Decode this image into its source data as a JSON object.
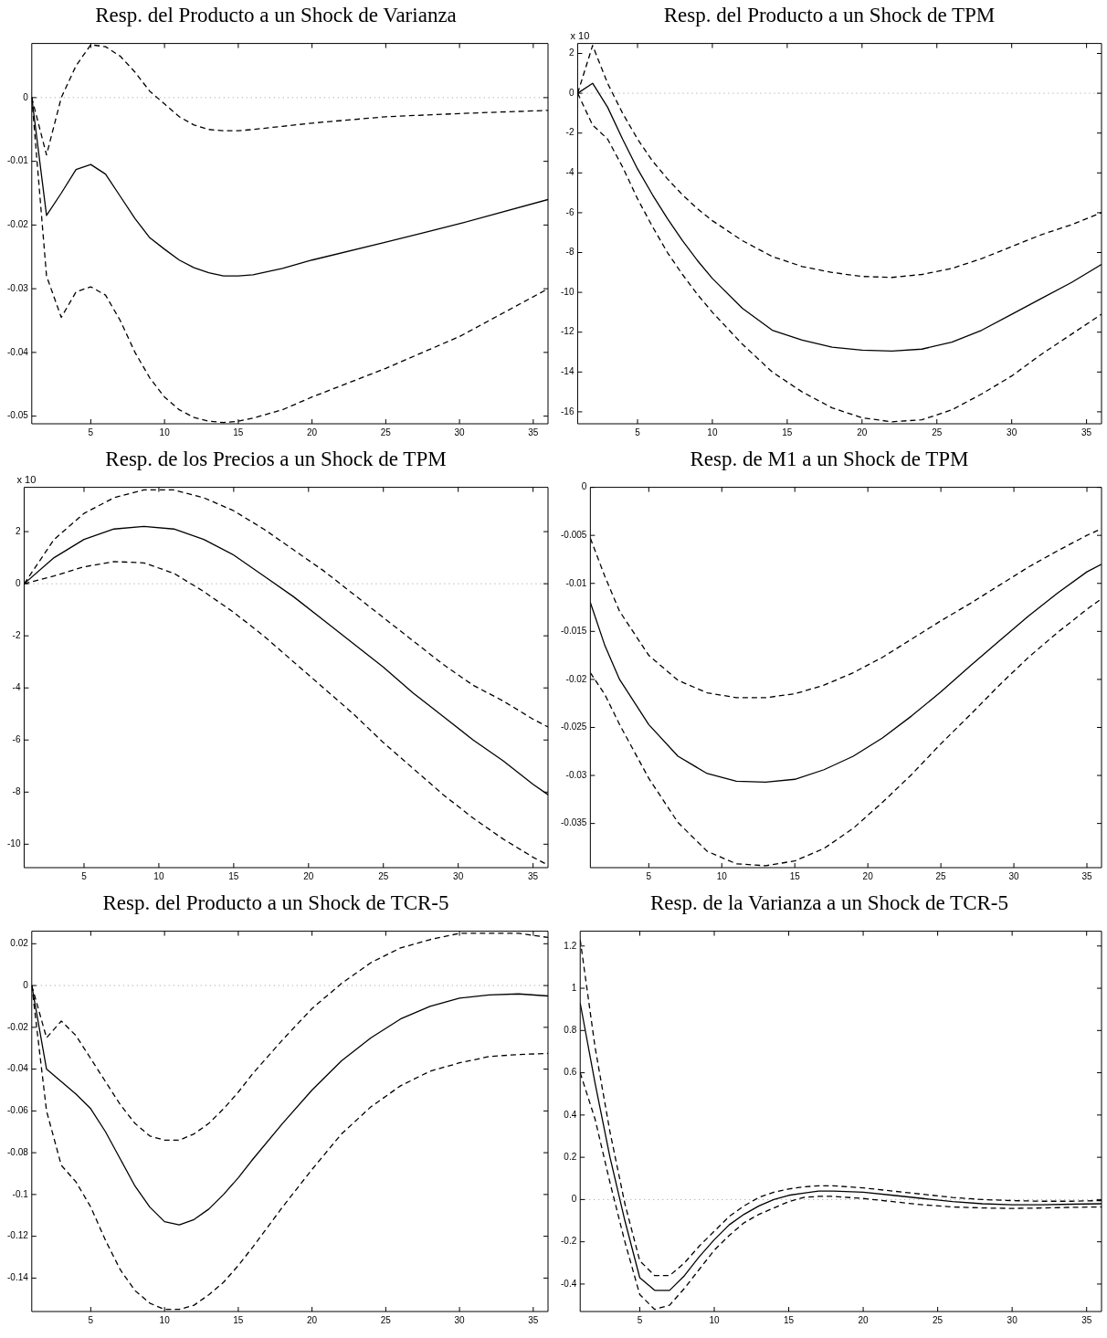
{
  "chart_data": [
    {
      "type": "line",
      "title": "Resp. del Producto a un Shock de Varianza",
      "x": [
        1,
        2,
        3,
        4,
        5,
        6,
        7,
        8,
        9,
        10,
        11,
        12,
        13,
        14,
        15,
        16,
        18,
        20,
        25,
        30,
        36
      ],
      "xlim": [
        1,
        36
      ],
      "xticks": [
        5,
        10,
        15,
        20,
        25,
        30,
        35
      ],
      "ylim": [
        -0.0512,
        0.0085
      ],
      "yticks": [
        -0.05,
        -0.04,
        -0.03,
        -0.02,
        -0.01,
        0
      ],
      "grid": false,
      "legend": false,
      "marker": "none",
      "ref_lines": [
        {
          "axis": "y",
          "value": 0,
          "line_style": "dotted",
          "color": "#999999"
        }
      ],
      "series": [
        {
          "color": "#000000",
          "line_style": "solid",
          "values": [
            0,
            -0.0185,
            -0.015,
            -0.0113,
            -0.0105,
            -0.012,
            -0.0155,
            -0.019,
            -0.022,
            -0.0238,
            -0.0255,
            -0.0267,
            -0.0275,
            -0.028,
            -0.028,
            -0.0278,
            -0.0268,
            -0.0255,
            -0.0227,
            -0.0198,
            -0.016
          ]
        },
        {
          "color": "#000000",
          "line_style": "dashed",
          "values": [
            0,
            -0.009,
            0,
            0.005,
            0.0083,
            0.008,
            0.0065,
            0.004,
            0.001,
            -0.001,
            -0.003,
            -0.0043,
            -0.005,
            -0.0052,
            -0.0052,
            -0.005,
            -0.0045,
            -0.004,
            -0.003,
            -0.0025,
            -0.002
          ]
        },
        {
          "color": "#000000",
          "line_style": "dashed",
          "values": [
            0,
            -0.028,
            -0.0345,
            -0.0305,
            -0.0297,
            -0.031,
            -0.035,
            -0.04,
            -0.044,
            -0.047,
            -0.049,
            -0.0502,
            -0.0508,
            -0.051,
            -0.0508,
            -0.0503,
            -0.049,
            -0.047,
            -0.0425,
            -0.0375,
            -0.03
          ]
        }
      ]
    },
    {
      "type": "line",
      "title": "Resp. del Producto a un Shock de TPM",
      "annotations": [
        "x 10"
      ],
      "x": [
        1,
        2,
        3,
        4,
        5,
        6,
        7,
        8,
        9,
        10,
        12,
        14,
        16,
        18,
        20,
        22,
        24,
        26,
        28,
        30,
        32,
        34,
        36
      ],
      "xlim": [
        1,
        36
      ],
      "xticks": [
        5,
        10,
        15,
        20,
        25,
        30,
        35
      ],
      "ylim": [
        -16.6,
        2.5
      ],
      "yticks": [
        -16,
        -14,
        -12,
        -10,
        -8,
        -6,
        -4,
        -2,
        0,
        2
      ],
      "grid": false,
      "legend": false,
      "marker": "none",
      "ref_lines": [
        {
          "axis": "y",
          "value": 0,
          "line_style": "dotted",
          "color": "#999999"
        }
      ],
      "series": [
        {
          "color": "#000000",
          "line_style": "solid",
          "values": [
            0,
            0.5,
            -0.7,
            -2.3,
            -3.8,
            -5.1,
            -6.3,
            -7.4,
            -8.4,
            -9.3,
            -10.8,
            -11.9,
            -12.4,
            -12.75,
            -12.9,
            -12.95,
            -12.85,
            -12.5,
            -11.9,
            -11.1,
            -10.3,
            -9.5,
            -8.6
          ]
        },
        {
          "color": "#000000",
          "line_style": "dashed",
          "values": [
            0,
            2.4,
            0.5,
            -1.0,
            -2.3,
            -3.4,
            -4.3,
            -5.1,
            -5.8,
            -6.4,
            -7.4,
            -8.2,
            -8.7,
            -9.0,
            -9.2,
            -9.25,
            -9.1,
            -8.8,
            -8.3,
            -7.7,
            -7.1,
            -6.6,
            -6.0
          ]
        },
        {
          "color": "#000000",
          "line_style": "dashed",
          "values": [
            0,
            -1.6,
            -2.3,
            -3.7,
            -5.3,
            -6.7,
            -8.0,
            -9.1,
            -10.1,
            -11.0,
            -12.6,
            -14.0,
            -15.0,
            -15.8,
            -16.3,
            -16.5,
            -16.4,
            -15.9,
            -15.1,
            -14.2,
            -13.1,
            -12.1,
            -11.1
          ]
        }
      ]
    },
    {
      "type": "line",
      "title": "Resp. de los Precios a un Shock de TPM",
      "annotations": [
        "x 10"
      ],
      "x": [
        1,
        3,
        5,
        7,
        9,
        11,
        13,
        15,
        17,
        19,
        21,
        23,
        25,
        27,
        29,
        31,
        33,
        35,
        36
      ],
      "xlim": [
        1,
        36
      ],
      "xticks": [
        5,
        10,
        15,
        20,
        25,
        30,
        35
      ],
      "ylim": [
        -10.9,
        3.7
      ],
      "yticks": [
        -10,
        -8,
        -6,
        -4,
        -2,
        0,
        2
      ],
      "grid": false,
      "legend": false,
      "marker": "none",
      "ref_lines": [
        {
          "axis": "y",
          "value": 0,
          "line_style": "dotted",
          "color": "#999999"
        }
      ],
      "series": [
        {
          "color": "#000000",
          "line_style": "solid",
          "values": [
            0,
            1.0,
            1.7,
            2.1,
            2.2,
            2.1,
            1.7,
            1.1,
            0.3,
            -0.5,
            -1.4,
            -2.3,
            -3.2,
            -4.2,
            -5.1,
            -6.0,
            -6.8,
            -7.7,
            -8.1
          ]
        },
        {
          "color": "#000000",
          "line_style": "dashed",
          "values": [
            0,
            1.7,
            2.7,
            3.3,
            3.6,
            3.6,
            3.3,
            2.8,
            2.1,
            1.3,
            0.5,
            -0.4,
            -1.3,
            -2.2,
            -3.1,
            -3.9,
            -4.5,
            -5.2,
            -5.5
          ]
        },
        {
          "color": "#000000",
          "line_style": "dashed",
          "values": [
            0,
            0.3,
            0.65,
            0.85,
            0.8,
            0.4,
            -0.3,
            -1.1,
            -2.0,
            -3.0,
            -4.0,
            -5.0,
            -6.1,
            -7.1,
            -8.1,
            -9.0,
            -9.8,
            -10.5,
            -10.8
          ]
        }
      ]
    },
    {
      "type": "line",
      "title": "Resp. de M1 a un Shock de TPM",
      "x": [
        1,
        2,
        3,
        5,
        7,
        9,
        11,
        13,
        15,
        17,
        19,
        21,
        23,
        25,
        27,
        29,
        31,
        33,
        35,
        36
      ],
      "xlim": [
        1,
        36
      ],
      "xticks": [
        5,
        10,
        15,
        20,
        25,
        30,
        35
      ],
      "ylim": [
        -0.0396,
        0
      ],
      "yticks": [
        -0.035,
        -0.03,
        -0.025,
        -0.02,
        -0.015,
        -0.01,
        -0.005,
        0
      ],
      "grid": false,
      "legend": false,
      "marker": "none",
      "series": [
        {
          "color": "#000000",
          "line_style": "solid",
          "values": [
            -0.012,
            -0.0165,
            -0.02,
            -0.0247,
            -0.028,
            -0.0298,
            -0.0306,
            -0.0307,
            -0.0304,
            -0.0294,
            -0.028,
            -0.0261,
            -0.0238,
            -0.0213,
            -0.0186,
            -0.016,
            -0.0134,
            -0.011,
            -0.0088,
            -0.008
          ]
        },
        {
          "color": "#000000",
          "line_style": "dashed",
          "values": [
            -0.0053,
            -0.0093,
            -0.0129,
            -0.0175,
            -0.0201,
            -0.0214,
            -0.0219,
            -0.0219,
            -0.0215,
            -0.0206,
            -0.0193,
            -0.0177,
            -0.0158,
            -0.0139,
            -0.0121,
            -0.0102,
            -0.0083,
            -0.0066,
            -0.005,
            -0.0043
          ]
        },
        {
          "color": "#000000",
          "line_style": "dashed",
          "values": [
            -0.0193,
            -0.0216,
            -0.0247,
            -0.0303,
            -0.0349,
            -0.0379,
            -0.0392,
            -0.0394,
            -0.0389,
            -0.0376,
            -0.0355,
            -0.0328,
            -0.0299,
            -0.0267,
            -0.0237,
            -0.0206,
            -0.0177,
            -0.0151,
            -0.0127,
            -0.0116
          ]
        }
      ]
    },
    {
      "type": "line",
      "title": "Resp. del Producto a un Shock de TCR-5",
      "x": [
        1,
        2,
        3,
        4,
        5,
        6,
        7,
        8,
        9,
        10,
        11,
        12,
        13,
        14,
        15,
        16,
        18,
        20,
        22,
        24,
        26,
        28,
        30,
        32,
        34,
        36
      ],
      "xlim": [
        1,
        36
      ],
      "xticks": [
        5,
        10,
        15,
        20,
        25,
        30,
        35
      ],
      "ylim": [
        -0.156,
        0.026
      ],
      "yticks": [
        -0.14,
        -0.12,
        -0.1,
        -0.08,
        -0.06,
        -0.04,
        -0.02,
        0,
        0.02
      ],
      "grid": false,
      "legend": false,
      "marker": "none",
      "ref_lines": [
        {
          "axis": "y",
          "value": 0,
          "line_style": "dotted",
          "color": "#999999"
        }
      ],
      "series": [
        {
          "color": "#000000",
          "line_style": "solid",
          "values": [
            0,
            -0.04,
            -0.046,
            -0.052,
            -0.059,
            -0.07,
            -0.083,
            -0.096,
            -0.106,
            -0.113,
            -0.1145,
            -0.112,
            -0.107,
            -0.1,
            -0.092,
            -0.083,
            -0.066,
            -0.05,
            -0.036,
            -0.025,
            -0.016,
            -0.01,
            -0.006,
            -0.0045,
            -0.004,
            -0.005
          ]
        },
        {
          "color": "#000000",
          "line_style": "dashed",
          "values": [
            0,
            -0.025,
            -0.017,
            -0.024,
            -0.035,
            -0.046,
            -0.057,
            -0.066,
            -0.072,
            -0.074,
            -0.074,
            -0.071,
            -0.066,
            -0.059,
            -0.051,
            -0.042,
            -0.026,
            -0.011,
            0.001,
            0.011,
            0.018,
            0.022,
            0.025,
            0.025,
            0.025,
            0.023
          ]
        },
        {
          "color": "#000000",
          "line_style": "dashed",
          "values": [
            0,
            -0.06,
            -0.086,
            -0.094,
            -0.106,
            -0.122,
            -0.136,
            -0.146,
            -0.152,
            -0.155,
            -0.155,
            -0.153,
            -0.148,
            -0.142,
            -0.134,
            -0.125,
            -0.106,
            -0.088,
            -0.071,
            -0.058,
            -0.048,
            -0.041,
            -0.037,
            -0.034,
            -0.033,
            -0.0325
          ]
        }
      ]
    },
    {
      "type": "line",
      "title": "Resp. de la Varianza a un Shock de TCR-5",
      "x": [
        1,
        2,
        3,
        4,
        5,
        6,
        7,
        8,
        9,
        10,
        11,
        12,
        13,
        14,
        15,
        16,
        17,
        18,
        20,
        22,
        24,
        26,
        28,
        30,
        32,
        34,
        36
      ],
      "xlim": [
        1,
        36
      ],
      "xticks": [
        5,
        10,
        15,
        20,
        25,
        30,
        35
      ],
      "ylim": [
        -0.53,
        1.27
      ],
      "yticks": [
        -0.4,
        -0.2,
        0,
        0.2,
        0.4,
        0.6,
        0.8,
        1,
        1.2
      ],
      "grid": false,
      "legend": false,
      "marker": "none",
      "ref_lines": [
        {
          "axis": "y",
          "value": 0,
          "line_style": "dotted",
          "color": "#999999"
        }
      ],
      "series": [
        {
          "color": "#000000",
          "line_style": "solid",
          "values": [
            0.93,
            0.55,
            0.2,
            -0.1,
            -0.37,
            -0.43,
            -0.43,
            -0.36,
            -0.27,
            -0.19,
            -0.12,
            -0.07,
            -0.03,
            0.0,
            0.02,
            0.03,
            0.04,
            0.04,
            0.035,
            0.02,
            0.005,
            -0.01,
            -0.02,
            -0.025,
            -0.025,
            -0.022,
            -0.02
          ]
        },
        {
          "color": "#000000",
          "line_style": "dashed",
          "values": [
            1.23,
            0.72,
            0.32,
            -0.02,
            -0.29,
            -0.36,
            -0.36,
            -0.3,
            -0.22,
            -0.15,
            -0.08,
            -0.03,
            0.01,
            0.035,
            0.05,
            0.06,
            0.065,
            0.065,
            0.055,
            0.04,
            0.025,
            0.01,
            0,
            -0.005,
            -0.008,
            -0.008,
            -0.005
          ]
        },
        {
          "color": "#000000",
          "line_style": "dashed",
          "values": [
            0.6,
            0.38,
            0.08,
            -0.2,
            -0.45,
            -0.52,
            -0.5,
            -0.42,
            -0.33,
            -0.24,
            -0.17,
            -0.11,
            -0.07,
            -0.04,
            -0.01,
            0.01,
            0.015,
            0.015,
            0.005,
            -0.01,
            -0.025,
            -0.035,
            -0.04,
            -0.042,
            -0.04,
            -0.037,
            -0.035
          ]
        }
      ]
    }
  ]
}
